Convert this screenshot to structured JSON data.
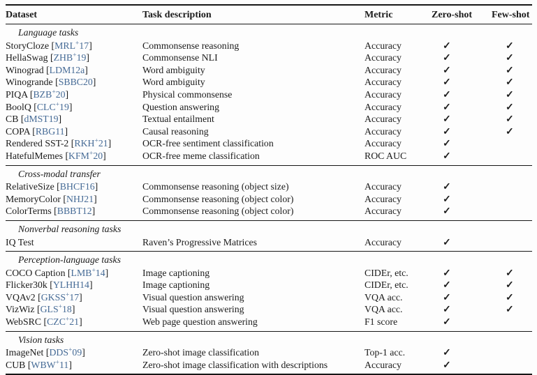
{
  "page": {
    "background": "#fdfdfd",
    "text_color": "#1b1b1b",
    "rule_color": "#161616",
    "citation_color": "#466b96",
    "check_glyph": "✓"
  },
  "table": {
    "columns": [
      "Dataset",
      "Task description",
      "Metric",
      "Zero-shot",
      "Few-shot"
    ],
    "sections": [
      {
        "label": "Language tasks",
        "rows": [
          {
            "dataset": "StoryCloze",
            "cite_pre": "MRL",
            "cite_sup": "+",
            "cite_post": "17",
            "task": "Commonsense reasoning",
            "metric": "Accuracy",
            "zero_shot": true,
            "few_shot": true
          },
          {
            "dataset": "HellaSwag",
            "cite_pre": "ZHB",
            "cite_sup": "+",
            "cite_post": "19",
            "task": "Commonsense NLI",
            "metric": "Accuracy",
            "zero_shot": true,
            "few_shot": true
          },
          {
            "dataset": "Winograd",
            "cite_pre": "LDM12a",
            "cite_sup": "",
            "cite_post": "",
            "task": "Word ambiguity",
            "metric": "Accuracy",
            "zero_shot": true,
            "few_shot": true
          },
          {
            "dataset": "Winogrande",
            "cite_pre": "SBBC20",
            "cite_sup": "",
            "cite_post": "",
            "task": "Word ambiguity",
            "metric": "Accuracy",
            "zero_shot": true,
            "few_shot": true
          },
          {
            "dataset": "PIQA",
            "cite_pre": "BZB",
            "cite_sup": "+",
            "cite_post": "20",
            "task": "Physical commonsense",
            "metric": "Accuracy",
            "zero_shot": true,
            "few_shot": true
          },
          {
            "dataset": "BoolQ",
            "cite_pre": "CLC",
            "cite_sup": "+",
            "cite_post": "19",
            "task": "Question answering",
            "metric": "Accuracy",
            "zero_shot": true,
            "few_shot": true
          },
          {
            "dataset": "CB",
            "cite_pre": "dMST19",
            "cite_sup": "",
            "cite_post": "",
            "task": "Textual entailment",
            "metric": "Accuracy",
            "zero_shot": true,
            "few_shot": true
          },
          {
            "dataset": "COPA",
            "cite_pre": "RBG11",
            "cite_sup": "",
            "cite_post": "",
            "task": "Causal reasoning",
            "metric": "Accuracy",
            "zero_shot": true,
            "few_shot": true
          },
          {
            "dataset": "Rendered SST-2",
            "cite_pre": "RKH",
            "cite_sup": "+",
            "cite_post": "21",
            "task": "OCR-free sentiment classification",
            "metric": "Accuracy",
            "zero_shot": true,
            "few_shot": false
          },
          {
            "dataset": "HatefulMemes",
            "cite_pre": "KFM",
            "cite_sup": "+",
            "cite_post": "20",
            "task": "OCR-free meme classification",
            "metric": "ROC AUC",
            "zero_shot": true,
            "few_shot": false
          }
        ]
      },
      {
        "label": "Cross-modal transfer",
        "rows": [
          {
            "dataset": "RelativeSize",
            "cite_pre": "BHCF16",
            "cite_sup": "",
            "cite_post": "",
            "task": "Commonsense reasoning (object size)",
            "metric": "Accuracy",
            "zero_shot": true,
            "few_shot": false
          },
          {
            "dataset": "MemoryColor",
            "cite_pre": "NHJ21",
            "cite_sup": "",
            "cite_post": "",
            "task": "Commonsense reasoning (object color)",
            "metric": "Accuracy",
            "zero_shot": true,
            "few_shot": false
          },
          {
            "dataset": "ColorTerms",
            "cite_pre": "BBBT12",
            "cite_sup": "",
            "cite_post": "",
            "task": "Commonsense reasoning (object color)",
            "metric": "Accuracy",
            "zero_shot": true,
            "few_shot": false
          }
        ]
      },
      {
        "label": "Nonverbal reasoning tasks",
        "rows": [
          {
            "dataset": "IQ Test",
            "cite_pre": "",
            "cite_sup": "",
            "cite_post": "",
            "task": "Raven’s Progressive Matrices",
            "metric": "Accuracy",
            "zero_shot": true,
            "few_shot": false
          }
        ]
      },
      {
        "label": "Perception-language tasks",
        "rows": [
          {
            "dataset": "COCO Caption",
            "cite_pre": "LMB",
            "cite_sup": "+",
            "cite_post": "14",
            "task": "Image captioning",
            "metric": "CIDEr, etc.",
            "zero_shot": true,
            "few_shot": true
          },
          {
            "dataset": "Flicker30k",
            "cite_pre": "YLHH14",
            "cite_sup": "",
            "cite_post": "",
            "task": "Image captioning",
            "metric": "CIDEr, etc.",
            "zero_shot": true,
            "few_shot": true
          },
          {
            "dataset": "VQAv2",
            "cite_pre": "GKSS",
            "cite_sup": "+",
            "cite_post": "17",
            "task": "Visual question answering",
            "metric": "VQA acc.",
            "zero_shot": true,
            "few_shot": true
          },
          {
            "dataset": "VizWiz",
            "cite_pre": "GLS",
            "cite_sup": "+",
            "cite_post": "18",
            "task": "Visual question answering",
            "metric": "VQA acc.",
            "zero_shot": true,
            "few_shot": true
          },
          {
            "dataset": "WebSRC",
            "cite_pre": "CZC",
            "cite_sup": "+",
            "cite_post": "21",
            "task": "Web page question answering",
            "metric": "F1 score",
            "zero_shot": true,
            "few_shot": false
          }
        ]
      },
      {
        "label": "Vision tasks",
        "rows": [
          {
            "dataset": "ImageNet",
            "cite_pre": "DDS",
            "cite_sup": "+",
            "cite_post": "09",
            "task": "Zero-shot image classification",
            "metric": "Top-1 acc.",
            "zero_shot": true,
            "few_shot": false
          },
          {
            "dataset": "CUB",
            "cite_pre": "WBW",
            "cite_sup": "+",
            "cite_post": "11",
            "task": "Zero-shot image classification with descriptions",
            "metric": "Accuracy",
            "zero_shot": true,
            "few_shot": false
          }
        ]
      }
    ]
  }
}
